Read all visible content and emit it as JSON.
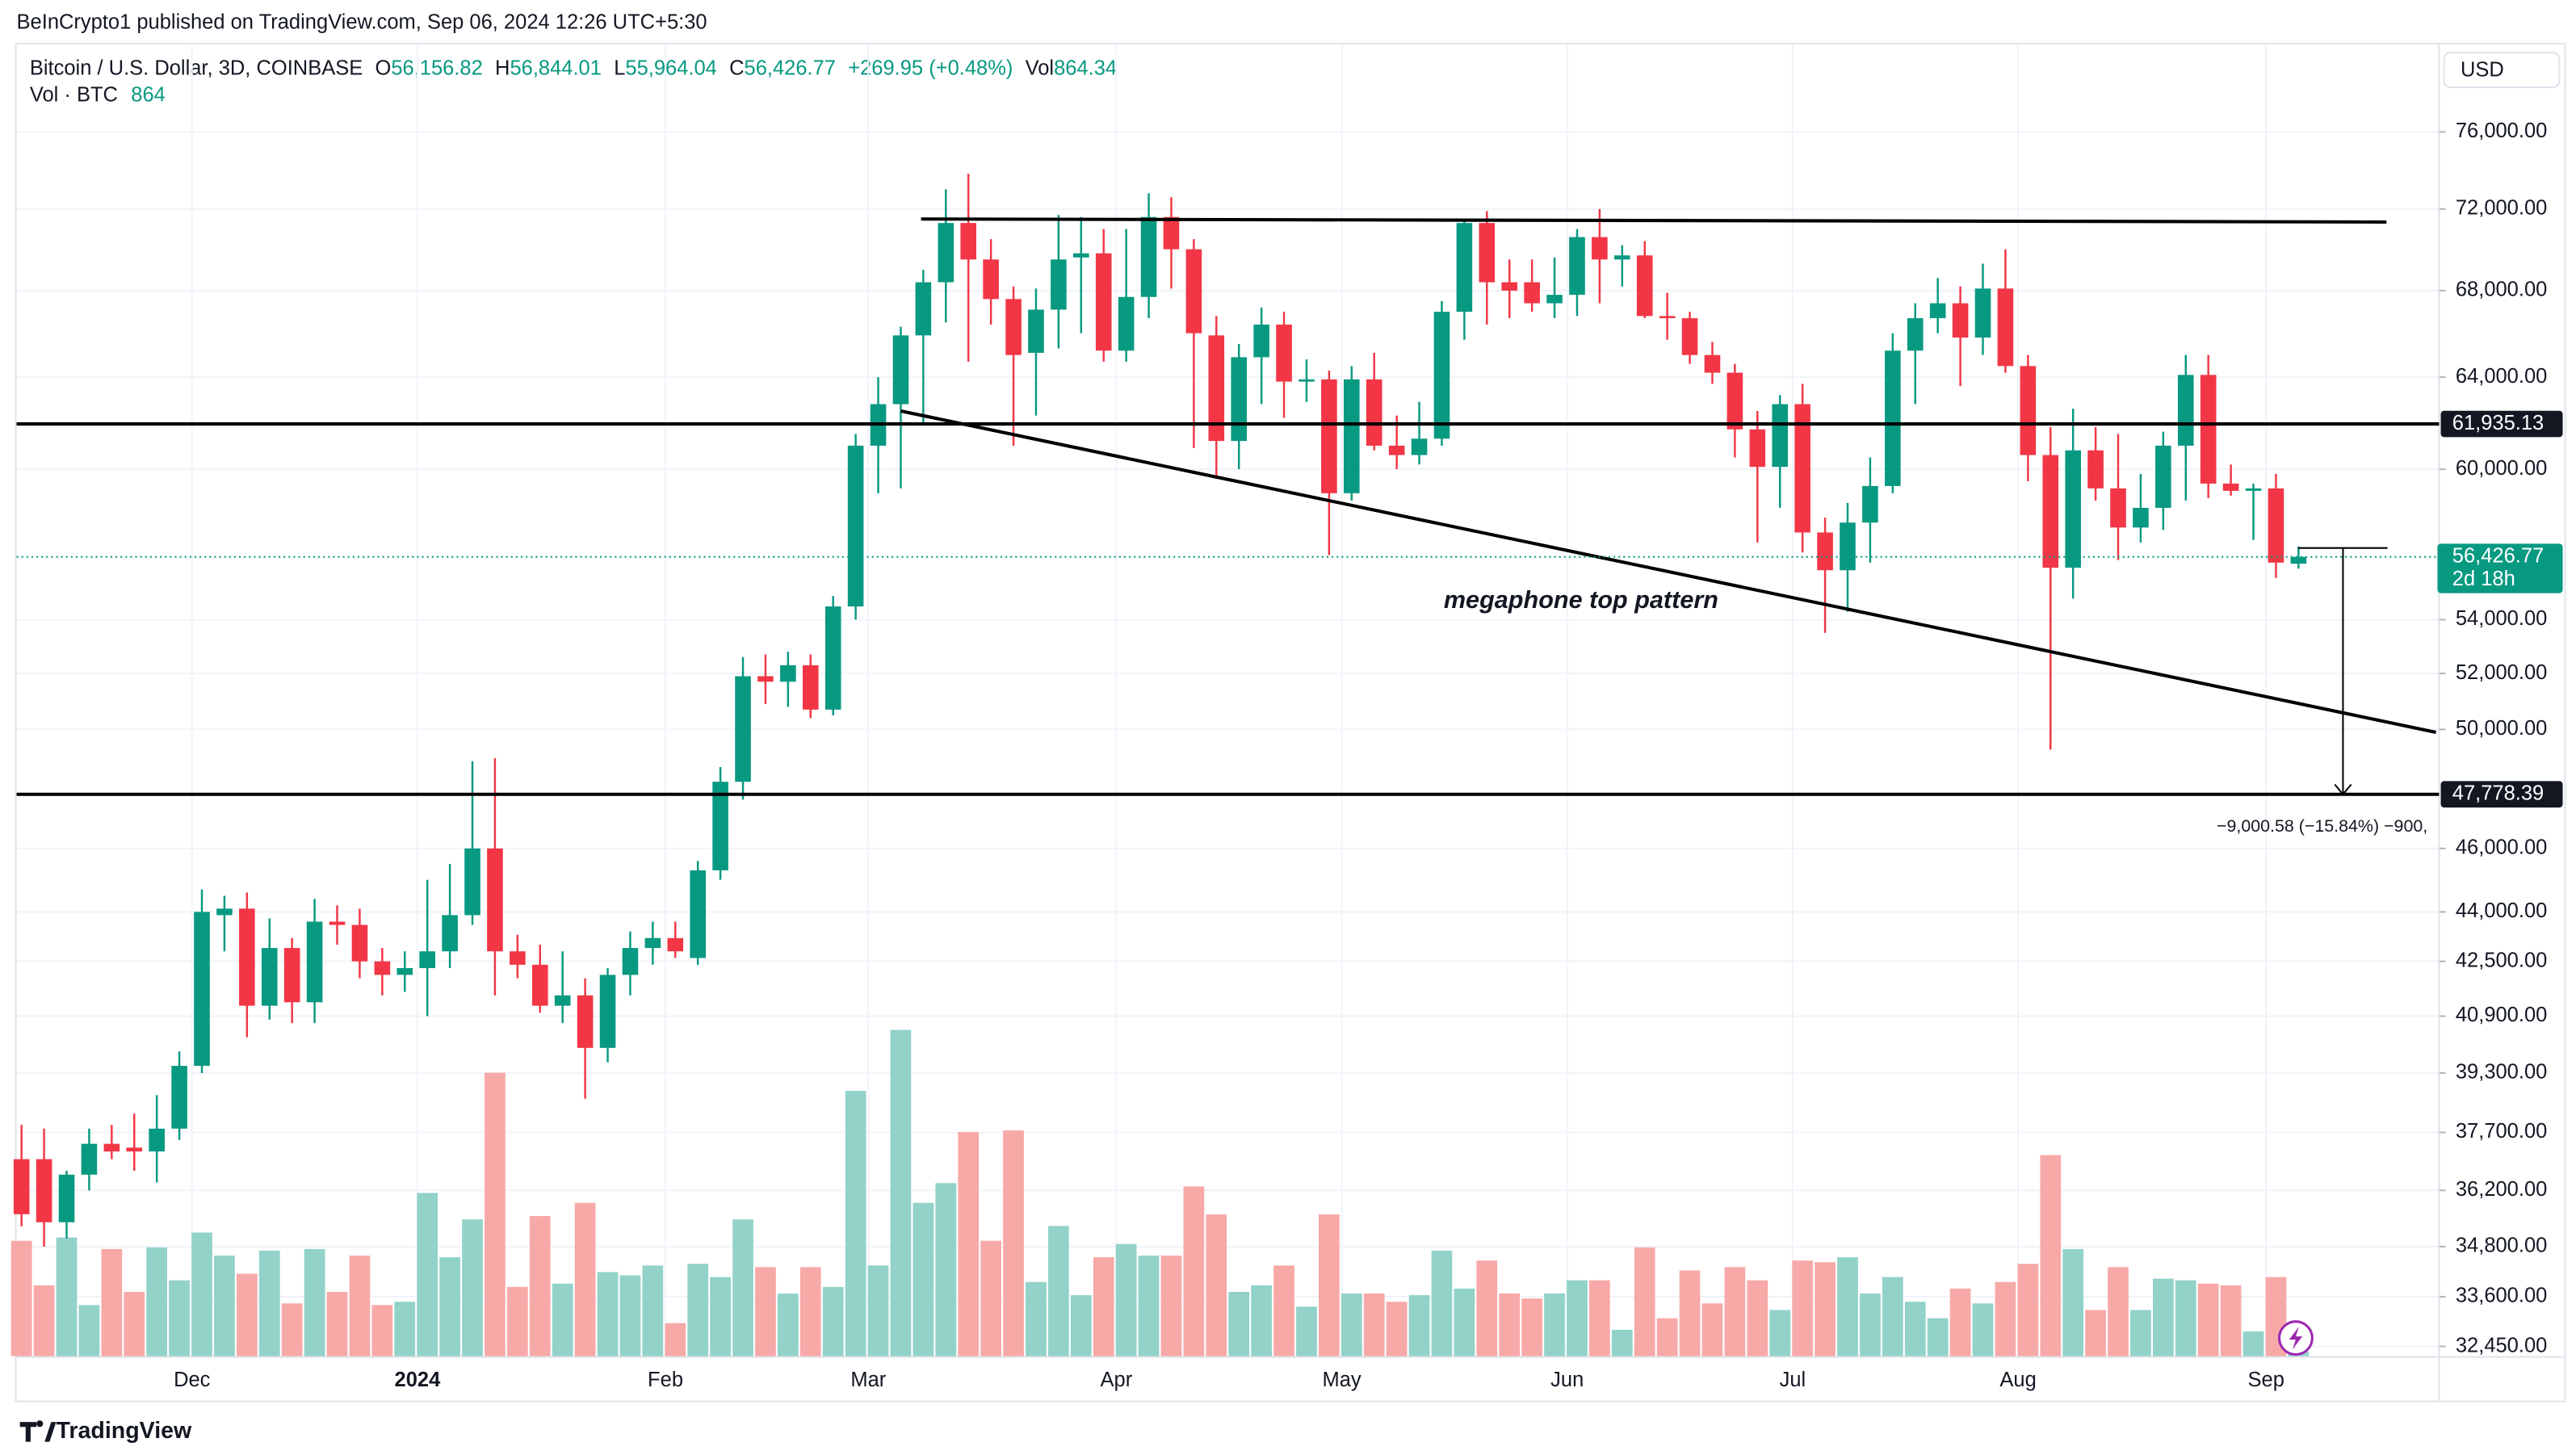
{
  "header": {
    "published": "BeInCrypto1 published on TradingView.com, Sep 06, 2024 12:26 UTC+5:30"
  },
  "chart_data": {
    "type": "candlestick",
    "legend": {
      "symbol": "Bitcoin / U.S. Dollar, 3D, COINBASE",
      "open_label": "O",
      "open": "56,156.82",
      "high_label": "H",
      "high": "56,844.01",
      "low_label": "L",
      "low": "55,964.04",
      "close_label": "C",
      "close": "56,426.77",
      "change": "+269.95 (+0.48%)",
      "vol_label": "Vol",
      "vol": "864.34",
      "volume_name": "Vol · BTC",
      "volume_value": "864"
    },
    "currency": "USD",
    "categories": [
      null,
      null,
      null,
      null,
      null,
      null,
      null,
      null,
      "Dec",
      null,
      null,
      null,
      null,
      null,
      null,
      null,
      null,
      null,
      "2024",
      null,
      null,
      null,
      null,
      null,
      null,
      null,
      null,
      null,
      null,
      "Feb",
      null,
      null,
      null,
      null,
      null,
      null,
      null,
      null,
      "Mar",
      null,
      null,
      null,
      null,
      null,
      null,
      null,
      null,
      null,
      null,
      "Apr",
      null,
      null,
      null,
      null,
      null,
      null,
      null,
      null,
      null,
      "May",
      null,
      null,
      null,
      null,
      null,
      null,
      null,
      null,
      null,
      "Jun",
      null,
      null,
      null,
      null,
      null,
      null,
      null,
      null,
      null,
      "Jul",
      null,
      null,
      null,
      null,
      null,
      null,
      null,
      null,
      null,
      "Aug",
      null,
      null,
      null,
      null,
      null,
      null,
      null,
      null,
      null,
      null,
      "Sep",
      null
    ],
    "open": [
      37000,
      37000,
      35400,
      36600,
      37400,
      37300,
      37200,
      37800,
      39500,
      43900,
      44100,
      41200,
      42900,
      41300,
      43700,
      43600,
      42500,
      42100,
      42300,
      42800,
      43900,
      46000,
      42800,
      42400,
      41200,
      41500,
      40000,
      42100,
      42900,
      43200,
      42600,
      45300,
      48200,
      51900,
      51700,
      52300,
      50700,
      54500,
      61000,
      62800,
      65900,
      68400,
      71300,
      69500,
      67600,
      65100,
      67100,
      69600,
      69800,
      65200,
      67700,
      71600,
      70000,
      65900,
      61200,
      64900,
      66400,
      63800,
      63900,
      59000,
      63900,
      61000,
      60600,
      61300,
      67000,
      71300,
      68400,
      68400,
      67400,
      67800,
      70600,
      69500,
      69700,
      66800,
      66700,
      65000,
      64200,
      61700,
      60100,
      62800,
      57400,
      55900,
      57800,
      59300,
      65200,
      66700,
      67400,
      65800,
      68100,
      64500,
      60600,
      56000,
      60800,
      59200,
      57600,
      58400,
      61000,
      64100,
      59400,
      59100,
      59200,
      56156.82
    ],
    "high": [
      37900,
      37800,
      36700,
      37800,
      37900,
      38200,
      38700,
      39900,
      44700,
      44500,
      44600,
      43800,
      43200,
      44400,
      44200,
      44100,
      42900,
      42800,
      45000,
      45500,
      48900,
      49000,
      43300,
      43000,
      42800,
      42000,
      42300,
      43400,
      43700,
      43700,
      45600,
      48700,
      52600,
      52700,
      52800,
      52700,
      54900,
      61500,
      64000,
      66300,
      69000,
      73000,
      73800,
      70500,
      68200,
      68100,
      71700,
      71600,
      71000,
      71000,
      72800,
      72600,
      70500,
      66800,
      65500,
      67200,
      67000,
      64800,
      64300,
      64500,
      65100,
      62300,
      62900,
      67500,
      71500,
      71900,
      69500,
      69500,
      69600,
      71000,
      72000,
      70200,
      70400,
      67900,
      67000,
      65600,
      64600,
      62500,
      63200,
      63700,
      58000,
      58600,
      60500,
      66000,
      67400,
      68600,
      68200,
      69300,
      70000,
      65000,
      61800,
      62600,
      61800,
      61500,
      59800,
      61600,
      65000,
      65000,
      60200,
      59400,
      59800,
      56844.01
    ],
    "low": [
      35300,
      34800,
      35000,
      36200,
      37000,
      36700,
      36400,
      37500,
      39300,
      42800,
      40300,
      40800,
      40700,
      40700,
      43000,
      42000,
      41500,
      41600,
      40900,
      42300,
      43600,
      41500,
      42000,
      41000,
      40700,
      38600,
      39600,
      41500,
      42400,
      42600,
      42400,
      45000,
      47600,
      50900,
      50800,
      50400,
      50500,
      54000,
      59000,
      59200,
      62000,
      66500,
      64700,
      66400,
      61000,
      62300,
      65300,
      66000,
      64700,
      64700,
      66700,
      68100,
      60900,
      59600,
      60000,
      62800,
      62200,
      62900,
      56500,
      58700,
      60800,
      60000,
      60200,
      61000,
      65700,
      66400,
      66700,
      67000,
      66700,
      66800,
      67400,
      68200,
      66700,
      65700,
      64600,
      63700,
      60500,
      57000,
      58400,
      56600,
      53500,
      54300,
      56200,
      59000,
      62800,
      66000,
      63600,
      65000,
      64200,
      59500,
      49300,
      54800,
      58700,
      56300,
      57000,
      57500,
      58700,
      58800,
      58900,
      57100,
      55600,
      55964.04
    ],
    "close": [
      35600,
      35400,
      36600,
      37400,
      37200,
      37200,
      37800,
      39500,
      44000,
      44100,
      41200,
      42900,
      41300,
      43700,
      43600,
      42500,
      42100,
      42300,
      42800,
      43900,
      46000,
      42800,
      42400,
      41200,
      41500,
      40000,
      42100,
      42900,
      43200,
      42800,
      45300,
      48200,
      51900,
      51700,
      52300,
      50700,
      54500,
      61000,
      62800,
      65900,
      68400,
      71300,
      69500,
      67600,
      65000,
      67100,
      69500,
      69800,
      65200,
      67700,
      71600,
      70000,
      66000,
      61200,
      64900,
      66400,
      63800,
      63900,
      59000,
      63900,
      61000,
      60600,
      61300,
      67000,
      71300,
      68400,
      68000,
      67400,
      67800,
      70600,
      69500,
      69700,
      66800,
      66700,
      65000,
      64200,
      61700,
      60100,
      62800,
      57400,
      55900,
      57800,
      59300,
      65200,
      66700,
      67400,
      65800,
      68100,
      64500,
      60600,
      56000,
      60800,
      59200,
      57600,
      58400,
      61000,
      64100,
      59400,
      59100,
      59200,
      56200,
      56426.77
    ],
    "volume": [
      21000,
      12900,
      21600,
      9300,
      19500,
      11700,
      19800,
      13800,
      22500,
      18300,
      15000,
      19200,
      9600,
      19500,
      11700,
      18300,
      9300,
      9900,
      29700,
      18000,
      24900,
      51600,
      12600,
      25500,
      13200,
      27900,
      15300,
      14700,
      16500,
      6000,
      16800,
      14400,
      24900,
      16200,
      11400,
      16200,
      12600,
      48300,
      16500,
      59400,
      27900,
      31500,
      40800,
      21000,
      41100,
      13500,
      23700,
      11100,
      18000,
      20400,
      18300,
      18300,
      30900,
      25800,
      11700,
      12900,
      16500,
      9000,
      25800,
      11400,
      11400,
      9900,
      11100,
      19200,
      12300,
      17400,
      11400,
      10500,
      11400,
      13800,
      13800,
      4800,
      19800,
      6900,
      15600,
      9600,
      16200,
      13800,
      8400,
      17400,
      17100,
      18000,
      11400,
      14400,
      9900,
      6900,
      12300,
      9600,
      13500,
      16800,
      36600,
      19500,
      8400,
      16200,
      8400,
      14100,
      13800,
      13200,
      12900,
      4500,
      14400,
      864.34
    ],
    "colors": {
      "up": "#089981",
      "down": "#f23645",
      "up_volume": "#92d2c9",
      "down_volume": "#f7a9a7"
    },
    "log_scale": true,
    "grid": true,
    "ylim": [
      32230,
      80800
    ],
    "yticks": [
      {
        "value": 76000,
        "label": "76,000.00"
      },
      {
        "value": 72000,
        "label": "72,000.00"
      },
      {
        "value": 68000,
        "label": "68,000.00"
      },
      {
        "value": 64000,
        "label": "64,000.00"
      },
      {
        "value": 60000,
        "label": "60,000.00"
      },
      {
        "value": 54000,
        "label": "54,000.00"
      },
      {
        "value": 52000,
        "label": "52,000.00"
      },
      {
        "value": 50000,
        "label": "50,000.00"
      },
      {
        "value": 46000,
        "label": "46,000.00"
      },
      {
        "value": 44000,
        "label": "44,000.00"
      },
      {
        "value": 42500,
        "label": "42,500.00"
      },
      {
        "value": 40900,
        "label": "40,900.00"
      },
      {
        "value": 39300,
        "label": "39,300.00"
      },
      {
        "value": 37700,
        "label": "37,700.00"
      },
      {
        "value": 36200,
        "label": "36,200.00"
      },
      {
        "value": 34800,
        "label": "34,800.00"
      },
      {
        "value": 33600,
        "label": "33,600.00"
      },
      {
        "value": 32450,
        "label": "32,450.00"
      }
    ],
    "levels": [
      {
        "value": 61935.13,
        "label": "61,935.13"
      },
      {
        "value": 47778.39,
        "label": "47,778.39"
      }
    ],
    "last_price": {
      "value": 56426.77,
      "label": "56,426.77",
      "countdown": "2d 18h"
    },
    "trendlines": [
      {
        "x": [
          39.9,
          104.9
        ],
        "y": [
          71500,
          71350
        ]
      },
      {
        "x": [
          39,
          107.1
        ],
        "y": [
          62500,
          49900
        ]
      }
    ],
    "annotation": "megaphone  top pattern",
    "measure": {
      "x": [
        101,
        102.9
      ],
      "from": 56778.97,
      "to": 47778.39,
      "label": "−9,000.58 (−15.84%) −900,"
    },
    "footer": "TradingView"
  }
}
